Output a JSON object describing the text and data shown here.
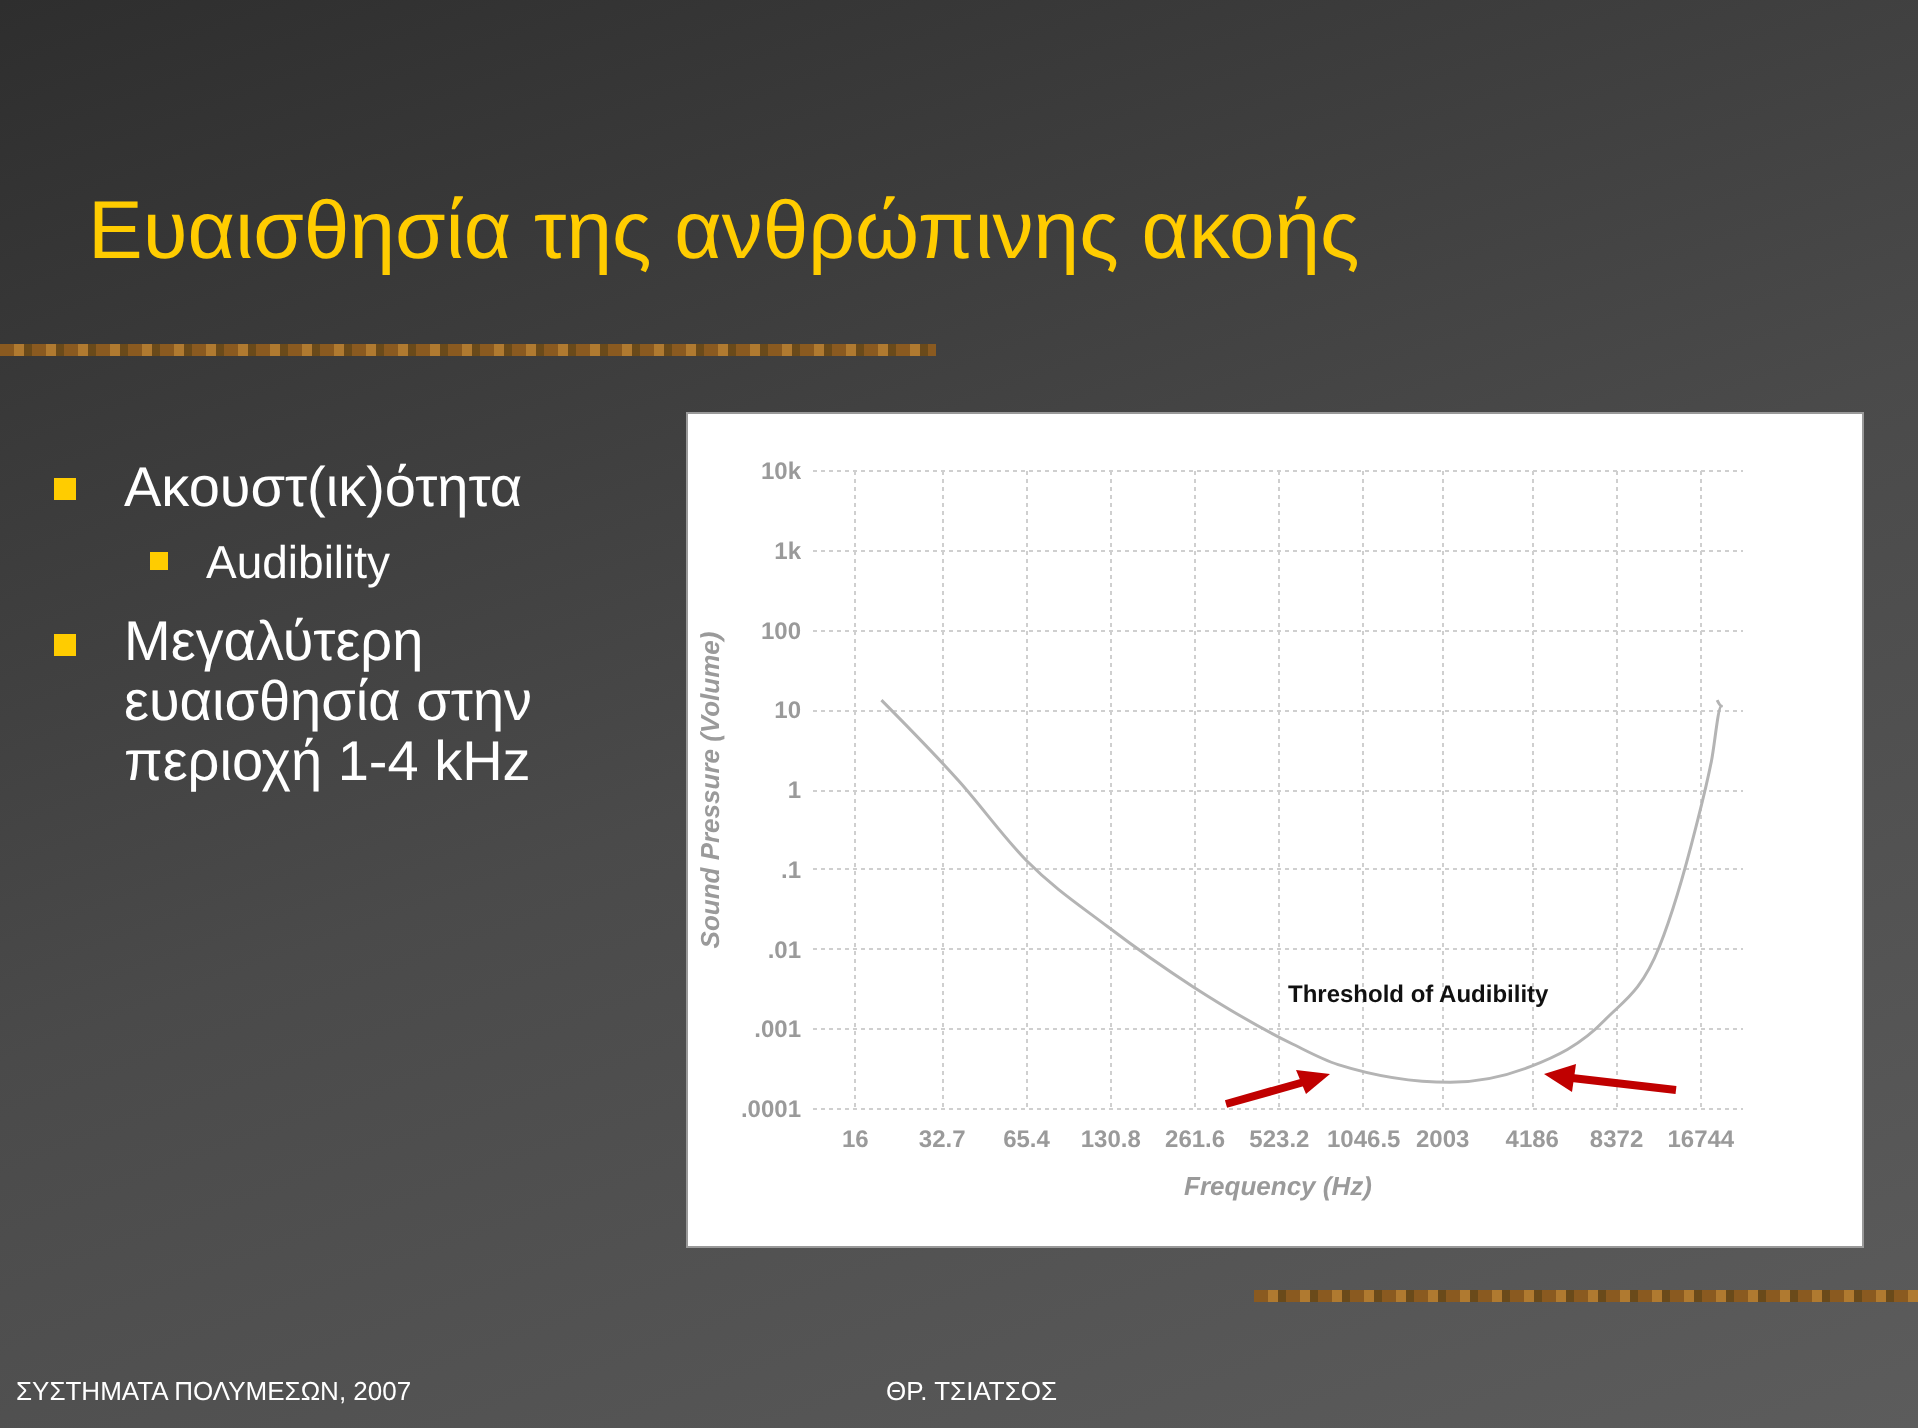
{
  "chart_data": {
    "type": "line",
    "title": "Ευαισθησία της ανθρώπινης ακοής",
    "xlabel": "Frequency (Hz)",
    "ylabel": "Sound Pressure (Volume)",
    "x": [
      20,
      37.8,
      66,
      128,
      260,
      590,
      855,
      2150,
      4150,
      7650,
      12000,
      16200,
      18400,
      20000,
      19300
    ],
    "series": [
      {
        "color": "#b4b4b4",
        "values": [
          13,
          1.26,
          0.126,
          0.019,
          0.0033,
          0.00063,
          0.00035,
          0.00021,
          0.00033,
          0.00126,
          0.0105,
          0.33,
          2.2,
          11,
          13
        ]
      }
    ],
    "log": "xy",
    "grid": true,
    "marker": "none",
    "xlim": [
      11.3,
      23680
    ],
    "xticks": [
      16,
      32.7,
      65.4,
      130.8,
      261.6,
      523.2,
      1046.5,
      2003,
      4186,
      8372,
      16744
    ],
    "ylim": [
      0.0001,
      10000
    ],
    "yticks": [
      {
        "value": 0.0001,
        "label": ".0001"
      },
      {
        "value": 0.001,
        "label": ".001"
      },
      {
        "value": 0.01,
        "label": ".01"
      },
      {
        "value": 0.1,
        "label": ".1"
      },
      1,
      10,
      100,
      {
        "value": 1000,
        "label": "1k"
      },
      {
        "value": 10000,
        "label": "10k"
      }
    ],
    "annotations": [
      "Threshold of Audibility",
      "Ακουστ(ικ)ότητα",
      "Audibility",
      "Μεγαλύτερη ευαισθησία στην περιοχή 1-4 kHz",
      "ΣΥΣΤΗΜΑΤΑ ΠΟΛΥΜΕΣΩΝ, 2007",
      "ΘΡ. ΤΣΙΑΤΣΟΣ"
    ]
  }
}
